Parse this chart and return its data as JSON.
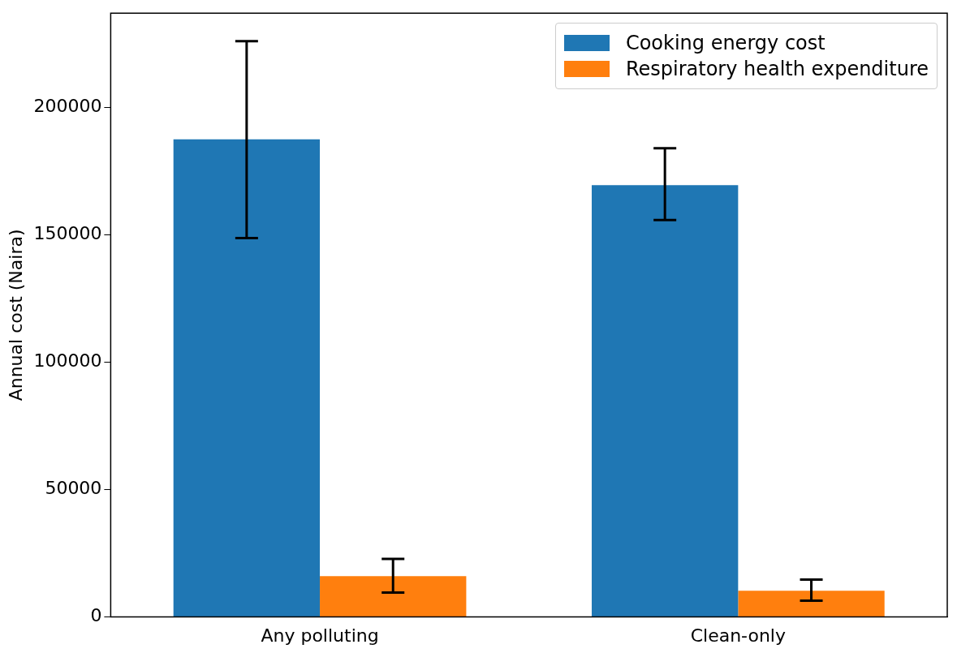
{
  "chart_data": {
    "type": "bar",
    "ylabel": "Annual cost (Naira)",
    "categories": [
      "Any polluting",
      "Clean-only"
    ],
    "series": [
      {
        "name": "Cooking energy cost",
        "color": "#1f77b4",
        "values": [
          187500,
          169500
        ],
        "errors": [
          [
            148700,
            226000
          ],
          [
            155800,
            184000
          ]
        ]
      },
      {
        "name": "Respiratory health expenditure",
        "color": "#ff7f0e",
        "values": [
          16000,
          10300
        ],
        "errors": [
          [
            9600,
            22800
          ],
          [
            6400,
            14700
          ]
        ]
      }
    ],
    "ylim": [
      0,
      237000
    ],
    "yticks": [
      0,
      50000,
      100000,
      150000,
      200000
    ],
    "grid": false,
    "legend": "top right"
  }
}
